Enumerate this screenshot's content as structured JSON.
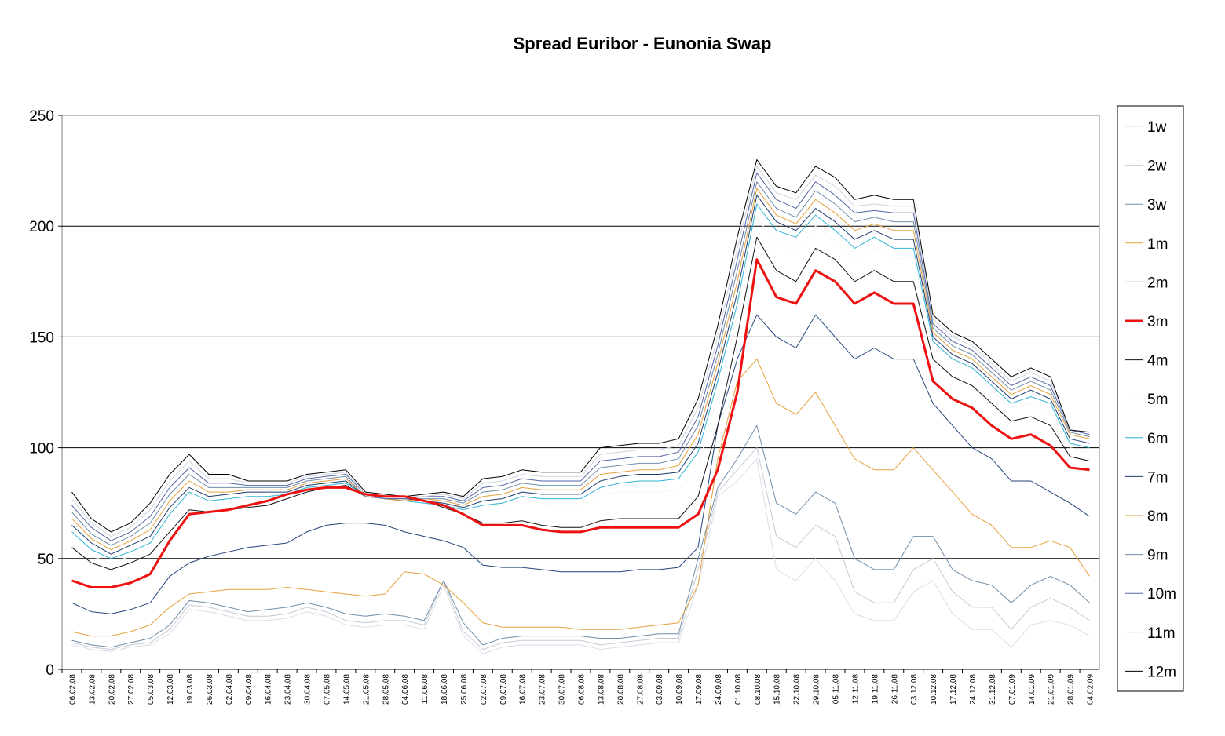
{
  "chart_data": {
    "type": "line",
    "title": "Spread Euribor - Eunonia Swap",
    "xlabel": "",
    "ylabel": "",
    "ylim": [
      0,
      250
    ],
    "yticks": [
      "0",
      "50",
      "100",
      "150",
      "200",
      "250"
    ],
    "grid": "horizontal",
    "legend_position": "right",
    "categories": [
      "06.02.08",
      "13.02.08",
      "20.02.08",
      "27.02.08",
      "05.03.08",
      "12.03.08",
      "19.03.08",
      "26.03.08",
      "02.04.08",
      "09.04.08",
      "16.04.08",
      "23.04.08",
      "30.04.08",
      "07.05.08",
      "14.05.08",
      "21.05.08",
      "28.05.08",
      "04.06.08",
      "11.06.08",
      "18.06.08",
      "25.06.08",
      "02.07.08",
      "09.07.08",
      "16.07.08",
      "23.07.08",
      "30.07.08",
      "06.08.08",
      "13.08.08",
      "20.08.08",
      "27.08.08",
      "03.09.08",
      "10.09.08",
      "17.09.08",
      "24.09.08",
      "01.10.08",
      "08.10.08",
      "15.10.08",
      "22.10.08",
      "29.10.08",
      "05.11.08",
      "12.11.08",
      "19.11.08",
      "26.11.08",
      "03.12.08",
      "10.12.08",
      "17.12.08",
      "24.12.08",
      "31.12.08",
      "07.01.09",
      "14.01.09",
      "21.01.09",
      "28.01.09",
      "04.02.09"
    ],
    "series": [
      {
        "name": "1w",
        "color": "#dcdde6",
        "width": 1,
        "values": [
          11,
          9,
          8,
          10,
          11,
          16,
          27,
          26,
          24,
          22,
          22,
          23,
          26,
          24,
          20,
          19,
          20,
          20,
          18,
          38,
          15,
          7,
          10,
          11,
          11,
          11,
          11,
          9,
          10,
          11,
          12,
          12,
          38,
          78,
          85,
          95,
          45,
          40,
          50,
          40,
          25,
          22,
          22,
          35,
          40,
          25,
          18,
          18,
          10,
          20,
          22,
          20,
          15
        ]
      },
      {
        "name": "2w",
        "color": "#c6c9d6",
        "width": 1,
        "values": [
          12,
          10,
          9,
          11,
          12,
          18,
          29,
          28,
          26,
          24,
          24,
          25,
          28,
          26,
          22,
          21,
          22,
          22,
          20,
          40,
          17,
          9,
          12,
          13,
          13,
          13,
          13,
          11,
          12,
          13,
          14,
          14,
          45,
          80,
          90,
          100,
          60,
          55,
          65,
          60,
          35,
          30,
          30,
          45,
          50,
          35,
          28,
          28,
          18,
          28,
          32,
          28,
          22
        ]
      },
      {
        "name": "3w",
        "color": "#6f8daa",
        "width": 1,
        "values": [
          13,
          11,
          10,
          12,
          14,
          20,
          31,
          30,
          28,
          26,
          27,
          28,
          30,
          28,
          25,
          24,
          25,
          24,
          22,
          40,
          21,
          11,
          14,
          15,
          15,
          15,
          15,
          14,
          14,
          15,
          16,
          16,
          50,
          82,
          95,
          110,
          75,
          70,
          80,
          75,
          50,
          45,
          45,
          60,
          60,
          45,
          40,
          38,
          30,
          38,
          42,
          38,
          30
        ]
      },
      {
        "name": "1m",
        "color": "#e6a13c",
        "width": 1,
        "values": [
          17,
          15,
          15,
          17,
          20,
          28,
          34,
          35,
          36,
          36,
          36,
          37,
          36,
          35,
          34,
          33,
          34,
          44,
          43,
          38,
          30,
          21,
          19,
          19,
          19,
          19,
          18,
          18,
          18,
          19,
          20,
          21,
          38,
          95,
          130,
          140,
          120,
          115,
          125,
          110,
          95,
          90,
          90,
          100,
          90,
          80,
          70,
          65,
          55,
          55,
          58,
          55,
          42
        ]
      },
      {
        "name": "2m",
        "color": "#24457a",
        "width": 1,
        "values": [
          30,
          26,
          25,
          27,
          30,
          42,
          48,
          51,
          53,
          55,
          56,
          57,
          62,
          65,
          66,
          66,
          65,
          62,
          60,
          58,
          55,
          47,
          46,
          46,
          45,
          44,
          44,
          44,
          44,
          45,
          45,
          46,
          55,
          110,
          140,
          160,
          150,
          145,
          160,
          150,
          140,
          145,
          140,
          140,
          120,
          110,
          100,
          95,
          85,
          85,
          80,
          75,
          69
        ]
      },
      {
        "name": "3m",
        "color": "#ee1111",
        "width": 3,
        "values": [
          40,
          37,
          37,
          39,
          43,
          58,
          70,
          71,
          72,
          74,
          76,
          79,
          81,
          82,
          82,
          79,
          78,
          78,
          76,
          74,
          70,
          65,
          65,
          65,
          63,
          62,
          62,
          64,
          64,
          64,
          64,
          64,
          70,
          90,
          125,
          185,
          168,
          165,
          180,
          175,
          165,
          170,
          165,
          165,
          130,
          122,
          118,
          110,
          104,
          106,
          101,
          91,
          90
        ]
      },
      {
        "name": "4m",
        "color": "#111111",
        "width": 1,
        "values": [
          55,
          48,
          45,
          48,
          52,
          62,
          72,
          71,
          72,
          73,
          74,
          77,
          80,
          82,
          83,
          78,
          77,
          77,
          76,
          73,
          70,
          66,
          66,
          67,
          65,
          64,
          64,
          67,
          68,
          68,
          68,
          68,
          78,
          110,
          150,
          195,
          180,
          175,
          190,
          185,
          175,
          180,
          175,
          175,
          140,
          132,
          128,
          120,
          112,
          114,
          110,
          96,
          94
        ]
      },
      {
        "name": "5m",
        "color": "#f7f7f7",
        "width": 1,
        "values": [
          58,
          51,
          48,
          51,
          55,
          66,
          76,
          74,
          75,
          76,
          77,
          79,
          82,
          83,
          84,
          78,
          78,
          77,
          77,
          74,
          71,
          73,
          74,
          76,
          75,
          74,
          74,
          79,
          80,
          80,
          80,
          81,
          91,
          125,
          160,
          204,
          192,
          188,
          200,
          193,
          185,
          190,
          185,
          186,
          145,
          138,
          134,
          126,
          118,
          120,
          116,
          100,
          98
        ]
      },
      {
        "name": "6m",
        "color": "#2fb4d6",
        "width": 1,
        "values": [
          62,
          54,
          50,
          53,
          57,
          70,
          80,
          76,
          77,
          78,
          78,
          79,
          82,
          83,
          84,
          78,
          77,
          76,
          75,
          74,
          72,
          74,
          75,
          78,
          77,
          77,
          77,
          82,
          84,
          85,
          85,
          86,
          98,
          130,
          165,
          210,
          198,
          195,
          205,
          198,
          190,
          195,
          190,
          190,
          148,
          140,
          136,
          128,
          120,
          123,
          120,
          102,
          100
        ]
      },
      {
        "name": "7m",
        "color": "#1e3c6e",
        "width": 1,
        "values": [
          65,
          57,
          52,
          56,
          60,
          73,
          82,
          78,
          79,
          80,
          80,
          80,
          83,
          84,
          85,
          78,
          77,
          76,
          76,
          75,
          73,
          76,
          77,
          80,
          79,
          79,
          79,
          85,
          87,
          88,
          88,
          89,
          102,
          134,
          170,
          214,
          202,
          198,
          208,
          202,
          194,
          198,
          194,
          194,
          150,
          142,
          138,
          130,
          122,
          126,
          122,
          104,
          102
        ]
      },
      {
        "name": "8m",
        "color": "#e6a13c",
        "width": 1,
        "values": [
          68,
          59,
          54,
          58,
          63,
          76,
          85,
          80,
          80,
          81,
          81,
          81,
          84,
          85,
          86,
          78,
          77,
          76,
          77,
          76,
          74,
          78,
          79,
          82,
          81,
          81,
          81,
          88,
          89,
          90,
          90,
          92,
          106,
          138,
          175,
          217,
          205,
          201,
          212,
          206,
          198,
          201,
          198,
          198,
          152,
          144,
          140,
          132,
          124,
          128,
          124,
          106,
          104
        ]
      },
      {
        "name": "9m",
        "color": "#6f8daa",
        "width": 1,
        "values": [
          71,
          61,
          56,
          60,
          66,
          79,
          88,
          82,
          82,
          82,
          82,
          82,
          85,
          86,
          87,
          78,
          77,
          77,
          77,
          77,
          75,
          80,
          81,
          84,
          83,
          83,
          83,
          91,
          92,
          93,
          93,
          95,
          110,
          142,
          180,
          220,
          208,
          204,
          216,
          210,
          202,
          204,
          202,
          202,
          154,
          146,
          142,
          134,
          126,
          130,
          126,
          107,
          105
        ]
      },
      {
        "name": "10m",
        "color": "#5565a5",
        "width": 1,
        "values": [
          74,
          64,
          58,
          62,
          69,
          82,
          91,
          84,
          84,
          83,
          83,
          83,
          86,
          87,
          88,
          79,
          77,
          77,
          78,
          78,
          76,
          82,
          83,
          86,
          85,
          85,
          85,
          94,
          95,
          96,
          96,
          98,
          114,
          146,
          185,
          224,
          212,
          208,
          220,
          214,
          206,
          207,
          206,
          206,
          156,
          148,
          144,
          136,
          128,
          132,
          128,
          108,
          106
        ]
      },
      {
        "name": "11m",
        "color": "#cfd4de",
        "width": 1,
        "values": [
          77,
          66,
          60,
          64,
          72,
          85,
          94,
          86,
          86,
          84,
          84,
          84,
          87,
          88,
          89,
          79,
          78,
          78,
          78,
          79,
          77,
          84,
          85,
          88,
          87,
          87,
          87,
          97,
          98,
          99,
          99,
          101,
          118,
          150,
          190,
          227,
          215,
          212,
          223,
          218,
          209,
          210,
          209,
          209,
          158,
          150,
          146,
          138,
          130,
          134,
          130,
          108,
          107
        ]
      },
      {
        "name": "12m",
        "color": "#000000",
        "width": 1,
        "values": [
          80,
          68,
          62,
          66,
          75,
          88,
          97,
          88,
          88,
          85,
          85,
          85,
          88,
          89,
          90,
          80,
          79,
          78,
          79,
          80,
          78,
          86,
          87,
          90,
          89,
          89,
          89,
          100,
          101,
          102,
          102,
          104,
          122,
          155,
          195,
          230,
          218,
          215,
          227,
          222,
          212,
          214,
          212,
          212,
          160,
          152,
          148,
          140,
          132,
          136,
          132,
          108,
          107
        ]
      }
    ]
  }
}
